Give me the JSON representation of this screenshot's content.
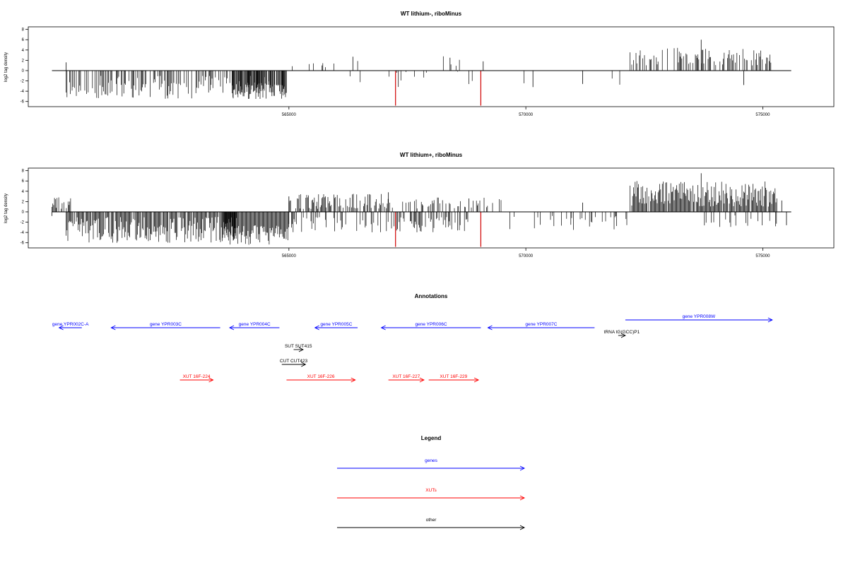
{
  "chart_data": [
    {
      "type": "bar",
      "title": "WT lithium-, riboMinus",
      "xlabel": "",
      "ylabel": "log2 tag density",
      "xlim": [
        559500,
        576500
      ],
      "ylim": [
        -7,
        8.5
      ],
      "yticks": [
        8,
        6,
        4,
        2,
        0,
        -2,
        -4,
        -6
      ],
      "xticks": [
        565000,
        570000,
        575000
      ],
      "xticklabels": [
        "565000",
        "570000",
        "575000"
      ],
      "baseline": [
        560000,
        575600
      ],
      "highlight_color": "#d00000",
      "highlight_x": [
        567250,
        569050
      ],
      "highlight_y": [
        -6.8,
        -6.8
      ],
      "segments": [
        {
          "x0": 560300,
          "x1": 565000,
          "ymin": -5.5,
          "ymax": -1,
          "density": 0.55,
          "seed": 11
        },
        {
          "x0": 563800,
          "x1": 564950,
          "ymin": -5.5,
          "ymax": -2.5,
          "density": 0.9,
          "seed": 12
        },
        {
          "x0": 565000,
          "x1": 566200,
          "ymin": 0.5,
          "ymax": 1.5,
          "density": 0.08,
          "seed": 13
        },
        {
          "x0": 566200,
          "x1": 568600,
          "ymin": -3.5,
          "ymax": 2.8,
          "density": 0.14,
          "seed": 14
        },
        {
          "x0": 568600,
          "x1": 572200,
          "ymin": -3.2,
          "ymax": -1,
          "density": 0.02,
          "seed": 15
        },
        {
          "x0": 572200,
          "x1": 575200,
          "ymin": 1,
          "ymax": 4.5,
          "density": 0.45,
          "seed": 16
        }
      ],
      "extra_x": [
        560300,
        565700,
        566350,
        568400,
        569100,
        570150,
        571200,
        573700,
        574600
      ],
      "extra_y": [
        1.6,
        1.0,
        2.7,
        2.5,
        1.8,
        -3.2,
        -2.6,
        6.0,
        -2.8
      ]
    },
    {
      "type": "bar",
      "title": "WT lithium+, riboMinus",
      "xlabel": "",
      "ylabel": "log2 tag density",
      "xlim": [
        559500,
        576500
      ],
      "ylim": [
        -7,
        8.5
      ],
      "yticks": [
        8,
        6,
        4,
        2,
        0,
        -2,
        -4,
        -6
      ],
      "xticks": [
        565000,
        570000,
        575000
      ],
      "xticklabels": [
        "565000",
        "570000",
        "575000"
      ],
      "baseline": [
        560000,
        575600
      ],
      "highlight_color": "#d00000",
      "highlight_x": [
        567250,
        569050
      ],
      "highlight_y": [
        -6.8,
        -6.8
      ],
      "segments": [
        {
          "x0": 560000,
          "x1": 560400,
          "ymin": 0.5,
          "ymax": 3,
          "density": 0.5,
          "seed": 21
        },
        {
          "x0": 560300,
          "x1": 563900,
          "ymin": -6,
          "ymax": -1,
          "density": 0.9,
          "seed": 22
        },
        {
          "x0": 563600,
          "x1": 565000,
          "ymin": -6.5,
          "ymax": -2.5,
          "density": 1.0,
          "seed": 23
        },
        {
          "x0": 565000,
          "x1": 567200,
          "ymin": 0.5,
          "ymax": 3.5,
          "density": 0.6,
          "seed": 24
        },
        {
          "x0": 565000,
          "x1": 568800,
          "ymin": -4,
          "ymax": -1,
          "density": 0.45,
          "seed": 25
        },
        {
          "x0": 567400,
          "x1": 569500,
          "ymin": 0.5,
          "ymax": 2.8,
          "density": 0.3,
          "seed": 26
        },
        {
          "x0": 569500,
          "x1": 572200,
          "ymin": -3.5,
          "ymax": -0.5,
          "density": 0.15,
          "seed": 27
        },
        {
          "x0": 572200,
          "x1": 575300,
          "ymin": 1,
          "ymax": 6,
          "density": 0.95,
          "seed": 28
        },
        {
          "x0": 573500,
          "x1": 575300,
          "ymin": -3,
          "ymax": -0.5,
          "density": 0.2,
          "seed": 29
        }
      ],
      "extra_x": [
        560000,
        565000,
        567100,
        568800,
        571200,
        573700,
        575500,
        575400
      ],
      "extra_y": [
        -0.8,
        3.0,
        3.8,
        2.6,
        1.8,
        7.5,
        -2.6,
        2.2
      ]
    }
  ],
  "annotations": {
    "title": "Annotations",
    "xlim": [
      559500,
      576500
    ],
    "features": [
      {
        "label": "gene YPR002C-A",
        "color": "#0000ff",
        "start": 560150,
        "end": 560630,
        "strand": "-",
        "row": 1
      },
      {
        "label": "gene YPR003C",
        "color": "#0000ff",
        "start": 561250,
        "end": 563550,
        "strand": "-",
        "row": 1
      },
      {
        "label": "gene YPR004C",
        "color": "#0000ff",
        "start": 563750,
        "end": 564800,
        "strand": "-",
        "row": 1
      },
      {
        "label": "gene YPR005C",
        "color": "#0000ff",
        "start": 565550,
        "end": 566450,
        "strand": "-",
        "row": 1
      },
      {
        "label": "gene YPR006C",
        "color": "#0000ff",
        "start": 566950,
        "end": 569050,
        "strand": "-",
        "row": 1
      },
      {
        "label": "gene YPR007C",
        "color": "#0000ff",
        "start": 569200,
        "end": 571450,
        "strand": "-",
        "row": 1
      },
      {
        "label": "gene YPR008W",
        "color": "#0000ff",
        "start": 572100,
        "end": 575200,
        "strand": "+",
        "row": 0
      },
      {
        "label": "tRNA tG(GCC)P1",
        "color": "#000000",
        "start": 571950,
        "end": 572100,
        "strand": "+",
        "row": 2
      },
      {
        "label": "SUT SUT415",
        "color": "#000000",
        "start": 565100,
        "end": 565300,
        "strand": "+",
        "row": 3
      },
      {
        "label": "CUT CUT423",
        "color": "#000000",
        "start": 564850,
        "end": 565350,
        "strand": "+",
        "row": 4
      },
      {
        "label": "XUT 16F-224",
        "color": "#ff0000",
        "start": 562700,
        "end": 563400,
        "strand": "+",
        "row": 5
      },
      {
        "label": "XUT 16F-226",
        "color": "#ff0000",
        "start": 564950,
        "end": 566400,
        "strand": "+",
        "row": 5
      },
      {
        "label": "XUT 16F-227",
        "color": "#ff0000",
        "start": 567100,
        "end": 567850,
        "strand": "+",
        "row": 5
      },
      {
        "label": "XUT 16F-229",
        "color": "#ff0000",
        "start": 567950,
        "end": 569000,
        "strand": "+",
        "row": 5
      }
    ]
  },
  "legend": {
    "title": "Legend",
    "items": [
      {
        "label": "genes",
        "color": "#0000ff"
      },
      {
        "label": "XUTs",
        "color": "#ff0000"
      },
      {
        "label": "other",
        "color": "#000000"
      }
    ]
  }
}
